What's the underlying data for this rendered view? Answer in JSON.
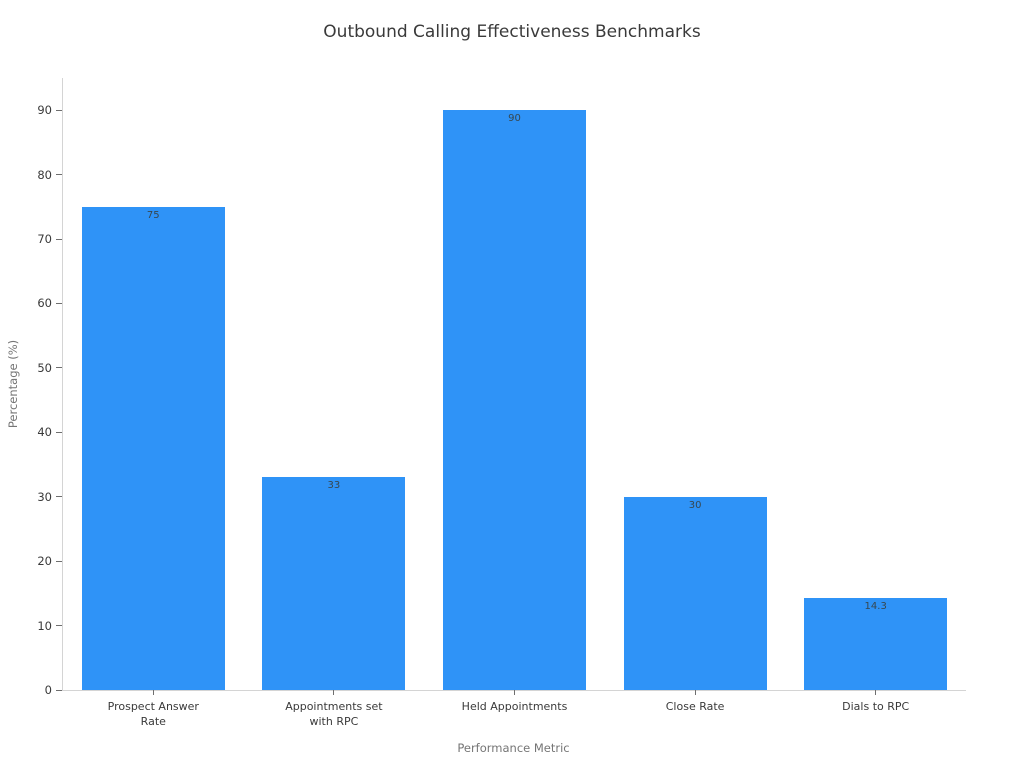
{
  "chart_data": {
    "type": "bar",
    "title": "Outbound Calling Effectiveness Benchmarks",
    "xlabel": "Performance Metric",
    "ylabel": "Percentage (%)",
    "categories": [
      "Prospect Answer Rate",
      "Appointments set with RPC",
      "Held Appointments",
      "Close Rate",
      "Dials to RPC"
    ],
    "category_label_lines": [
      [
        "Prospect Answer",
        "Rate"
      ],
      [
        "Appointments set",
        "with RPC"
      ],
      [
        "Held Appointments"
      ],
      [
        "Close Rate"
      ],
      [
        "Dials to RPC"
      ]
    ],
    "values": [
      75,
      33,
      90,
      30,
      14.3
    ],
    "value_labels": [
      "75",
      "33",
      "90",
      "30",
      "14.3"
    ],
    "ylim": [
      0,
      95
    ],
    "yticks": [
      0,
      10,
      20,
      30,
      40,
      50,
      60,
      70,
      80,
      90
    ],
    "grid": false,
    "legend": null,
    "colors": {
      "bar": "#2f93f7",
      "value_label": "#37474f",
      "spine": "#d4d4d4",
      "tick_mark": "#6e6e6e",
      "tick_label": "#3a3a3a",
      "title": "#3a3a3a",
      "axis_title": "#757575",
      "background": "#ffffff"
    }
  }
}
